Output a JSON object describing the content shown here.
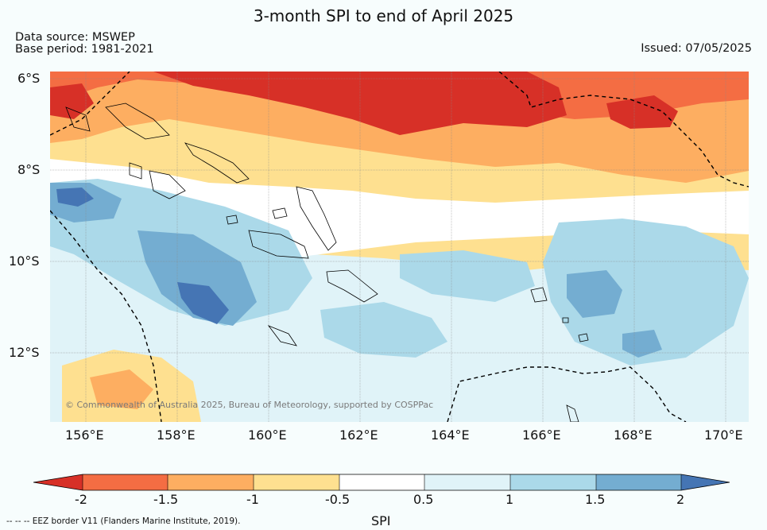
{
  "title": "3-month SPI to end of April 2025",
  "data_source": "Data source: MSWEP",
  "base_period": "Base period: 1981-2021",
  "issued": "Issued: 07/05/2025",
  "lat_labels": [
    "6°S",
    "8°S",
    "10°S",
    "12°S"
  ],
  "lon_labels": [
    "156°E",
    "158°E",
    "160°E",
    "162°E",
    "164°E",
    "166°E",
    "168°E",
    "170°E"
  ],
  "credit": "© Commonwealth of Australia 2025, Bureau of Meteorology, supported by COSPPac",
  "colorbar": {
    "label": "SPI",
    "ticks": [
      "-2",
      "-1.5",
      "-1",
      "-0.5",
      "0.5",
      "1",
      "1.5",
      "2"
    ],
    "colors": {
      "lt_-2": "#d73027",
      "-2_-1.5": "#f46d43",
      "-1.5_-1": "#fdae61",
      "-1_-0.5": "#fee090",
      "-0.5_0.5": "#ffffff",
      "0.5_1": "#e0f3f8",
      "1_1.5": "#abd9e9",
      "1.5_2": "#74add1",
      "gt_2": "#4575b4"
    }
  },
  "legend_footer": "--  --  -- EEZ border V11 (Flanders Marine Institute, 2019)."
}
